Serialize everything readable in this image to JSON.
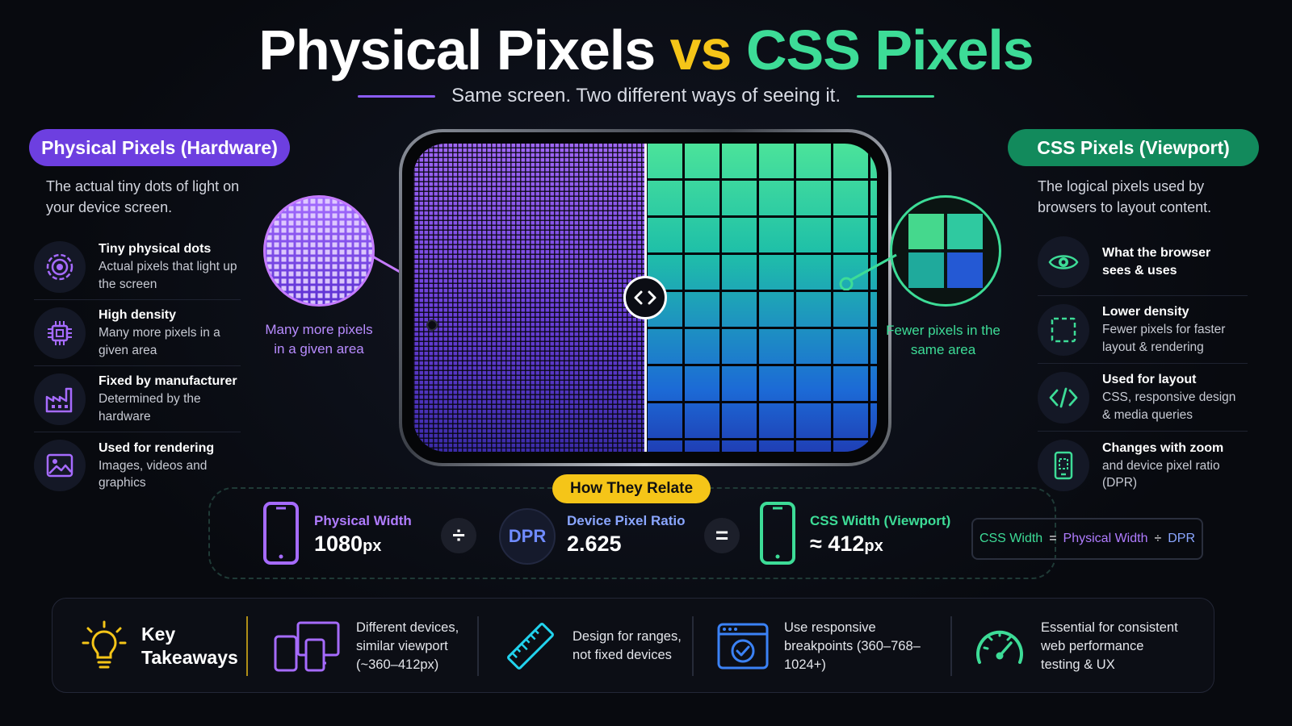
{
  "header": {
    "title_part1": "Physical Pixels",
    "title_part2": "vs",
    "title_part3": "CSS Pixels",
    "subtitle": "Same screen. Two different ways of seeing it."
  },
  "left_panel": {
    "pill": "Physical Pixels (Hardware)",
    "description": "The actual tiny dots of light on your device screen.",
    "features": [
      {
        "icon": "target-circle-icon",
        "title": "Tiny physical dots",
        "text": "Actual pixels that light up the screen"
      },
      {
        "icon": "chip-icon",
        "title": "High density",
        "text": "Many more pixels in a given area"
      },
      {
        "icon": "factory-icon",
        "title": "Fixed by manufacturer",
        "text": "Determined by the hardware"
      },
      {
        "icon": "image-icon",
        "title": "Used for rendering",
        "text": "Images, videos and graphics"
      }
    ],
    "zoom_label": "Many more pixels in a given area"
  },
  "right_panel": {
    "pill": "CSS Pixels (Viewport)",
    "description": "The logical pixels used by browsers to layout content.",
    "features": [
      {
        "icon": "eye-icon",
        "title": "What the browser sees & uses",
        "text": ""
      },
      {
        "icon": "dashed-square-icon",
        "title": "Lower density",
        "text": "Fewer pixels for faster layout & rendering"
      },
      {
        "icon": "code-icon",
        "title": "Used for layout",
        "text": "CSS, responsive design & media queries"
      },
      {
        "icon": "mobile-screen-icon",
        "title": "Changes with zoom",
        "text": "and device pixel ratio (DPR)"
      }
    ],
    "zoom_label": "Fewer pixels in the same area"
  },
  "relate": {
    "pill": "How They Relate",
    "physical_title": "Physical Width",
    "physical_value": "1080",
    "physical_unit": "px",
    "divide_symbol": "÷",
    "dpr_badge": "DPR",
    "dpr_title": "Device Pixel Ratio",
    "dpr_value": "2.625",
    "equals_symbol": "=",
    "css_title": "CSS Width (Viewport)",
    "css_value": "≈ 412",
    "css_unit": "px",
    "formula": {
      "css": "CSS Width",
      "eq": "=",
      "physical": "Physical Width",
      "op": "÷",
      "dpr": "DPR"
    }
  },
  "takeaways": {
    "heading_line1": "Key",
    "heading_line2": "Takeaways",
    "items": [
      {
        "icon": "devices-icon",
        "text": "Different devices, similar viewport (~360–412px)"
      },
      {
        "icon": "ruler-icon",
        "text": "Design for ranges, not fixed devices"
      },
      {
        "icon": "browser-check-icon",
        "text": "Use responsive breakpoints (360–768–1024+)"
      },
      {
        "icon": "speedometer-icon",
        "text": "Essential for consistent web performance testing & UX"
      }
    ]
  },
  "colors": {
    "purple": "#8b5cf6",
    "green": "#3ddc97",
    "yellow": "#f5c518",
    "blue": "#3b82f6",
    "cyan": "#22d3ee"
  }
}
